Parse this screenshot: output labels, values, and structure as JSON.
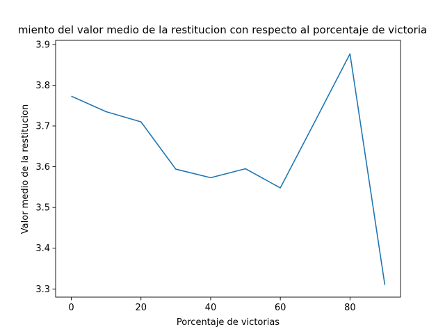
{
  "chart_data": {
    "type": "line",
    "title": "Comportamiento del valor medio de la restitucion con respecto al porcentaje de victorias",
    "title_visible": "miento del valor medio de la restitucion con respecto al porcentaje de victoria",
    "xlabel": "Porcentaje de victorias",
    "ylabel": "Valor medio de la restitucion",
    "xlim": [
      -4.5,
      94.5
    ],
    "ylim": [
      3.28,
      3.91
    ],
    "xticks": [
      0,
      20,
      40,
      60,
      80
    ],
    "yticks": [
      3.3,
      3.4,
      3.5,
      3.6,
      3.7,
      3.8,
      3.9
    ],
    "grid": false,
    "legend": "none",
    "series": [
      {
        "color": "#1f77b4",
        "x": [
          0,
          10,
          20,
          30,
          40,
          50,
          60,
          70,
          80,
          90
        ],
        "y": [
          3.773,
          3.735,
          3.71,
          3.594,
          3.573,
          3.595,
          3.548,
          3.712,
          3.877,
          3.31
        ]
      }
    ]
  }
}
